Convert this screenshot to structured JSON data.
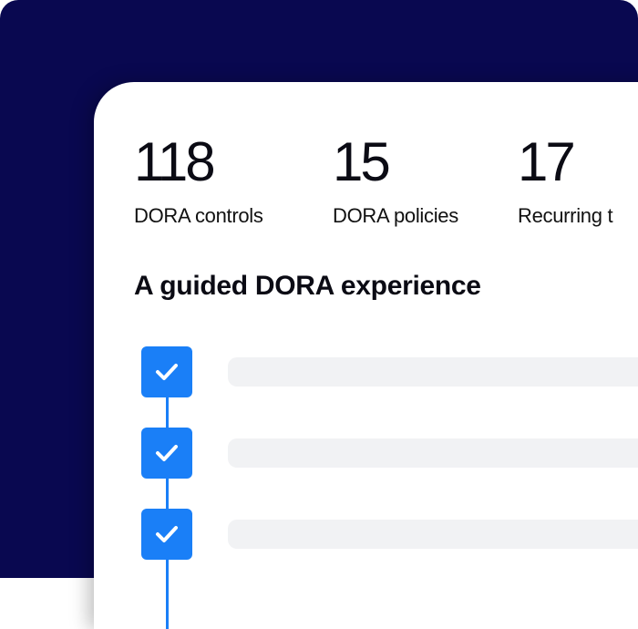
{
  "colors": {
    "background": "#090850",
    "accent": "#1a7ff7",
    "card": "#ffffff",
    "placeholder": "#f1f2f4"
  },
  "stats": [
    {
      "value": "118",
      "label": "DORA controls"
    },
    {
      "value": "15",
      "label": "DORA policies"
    },
    {
      "value": "17",
      "label": "Recurring t"
    }
  ],
  "heading": "A guided DORA experience",
  "steps": [
    {
      "icon": "check-icon",
      "checked": true
    },
    {
      "icon": "check-icon",
      "checked": true
    },
    {
      "icon": "check-icon",
      "checked": true
    }
  ]
}
